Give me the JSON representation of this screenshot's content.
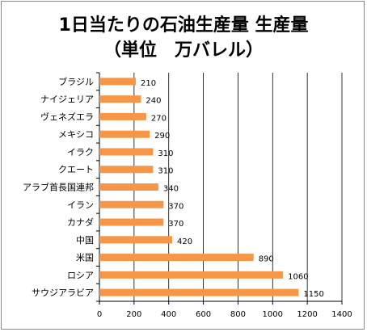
{
  "chart_data": {
    "type": "bar",
    "orientation": "horizontal",
    "title": "1日当たりの石油生産量 生産量",
    "subtitle": "（単位　万バレル）",
    "categories": [
      "ブラジル",
      "ナイジェリア",
      "ヴェネズエラ",
      "メキシコ",
      "イラク",
      "クエート",
      "アラブ首長国連邦",
      "イラン",
      "カナダ",
      "中国",
      "米国",
      "ロシア",
      "サウジアラビア"
    ],
    "values": [
      210,
      240,
      270,
      290,
      310,
      310,
      340,
      370,
      370,
      420,
      890,
      1060,
      1150
    ],
    "xlim": [
      0,
      1400
    ],
    "xticks": [
      0,
      200,
      400,
      600,
      800,
      1000,
      1200,
      1400
    ],
    "grid": true,
    "data_labels": true,
    "bar_color": "#f79646"
  }
}
